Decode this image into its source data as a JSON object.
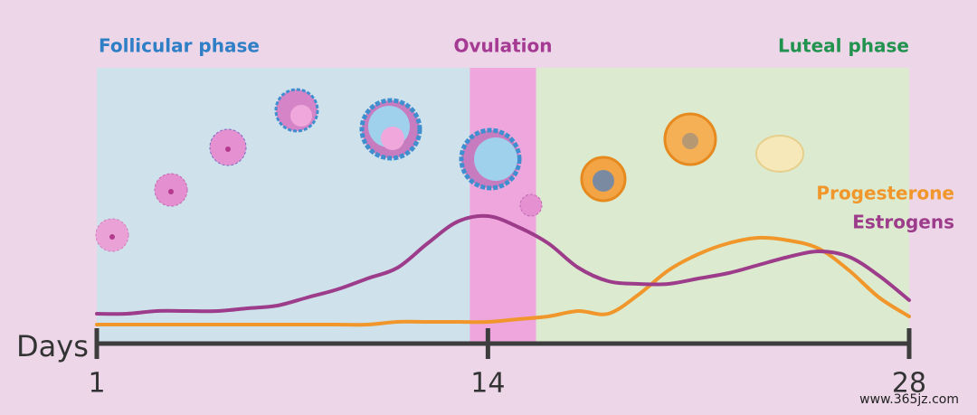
{
  "chart_data": {
    "type": "line",
    "x_label": "Days",
    "x": [
      1,
      2,
      3,
      4,
      5,
      6,
      7,
      8,
      9,
      10,
      11,
      12,
      13,
      14,
      15,
      16,
      17,
      18,
      19,
      20,
      21,
      22,
      23,
      24,
      25,
      26,
      27,
      28
    ],
    "xlim": [
      1,
      28
    ],
    "xticks": [
      1,
      14,
      28
    ],
    "ylim": [
      0,
      100
    ],
    "phases": [
      {
        "name": "Follicular phase",
        "start": 1,
        "end": 13.4,
        "color": "#cfe1ea",
        "text_color": "#2f7fc6"
      },
      {
        "name": "Ovulation",
        "start": 13.4,
        "end": 15.6,
        "color": "#eea6dd",
        "text_color": "#a53a93"
      },
      {
        "name": "Luteal phase",
        "start": 15.6,
        "end": 28,
        "color": "#dcebcf",
        "text_color": "#22924f"
      }
    ],
    "series": [
      {
        "name": "Progesterone",
        "color": "#f0962a",
        "values": [
          7,
          7,
          7,
          7,
          7,
          7,
          7,
          7,
          7,
          7,
          8,
          8,
          8,
          8,
          9,
          10,
          12,
          11,
          18,
          27,
          33,
          37,
          39,
          38,
          35,
          27,
          17,
          10
        ]
      },
      {
        "name": "Estrogens",
        "color": "#9c3c8a",
        "values": [
          11,
          11,
          12,
          12,
          12,
          13,
          14,
          17,
          20,
          24,
          28,
          37,
          45,
          47,
          43,
          37,
          28,
          23,
          22,
          22,
          24,
          26,
          29,
          32,
          34,
          32,
          25,
          16
        ]
      }
    ],
    "watermark": "www.365jz.com"
  }
}
